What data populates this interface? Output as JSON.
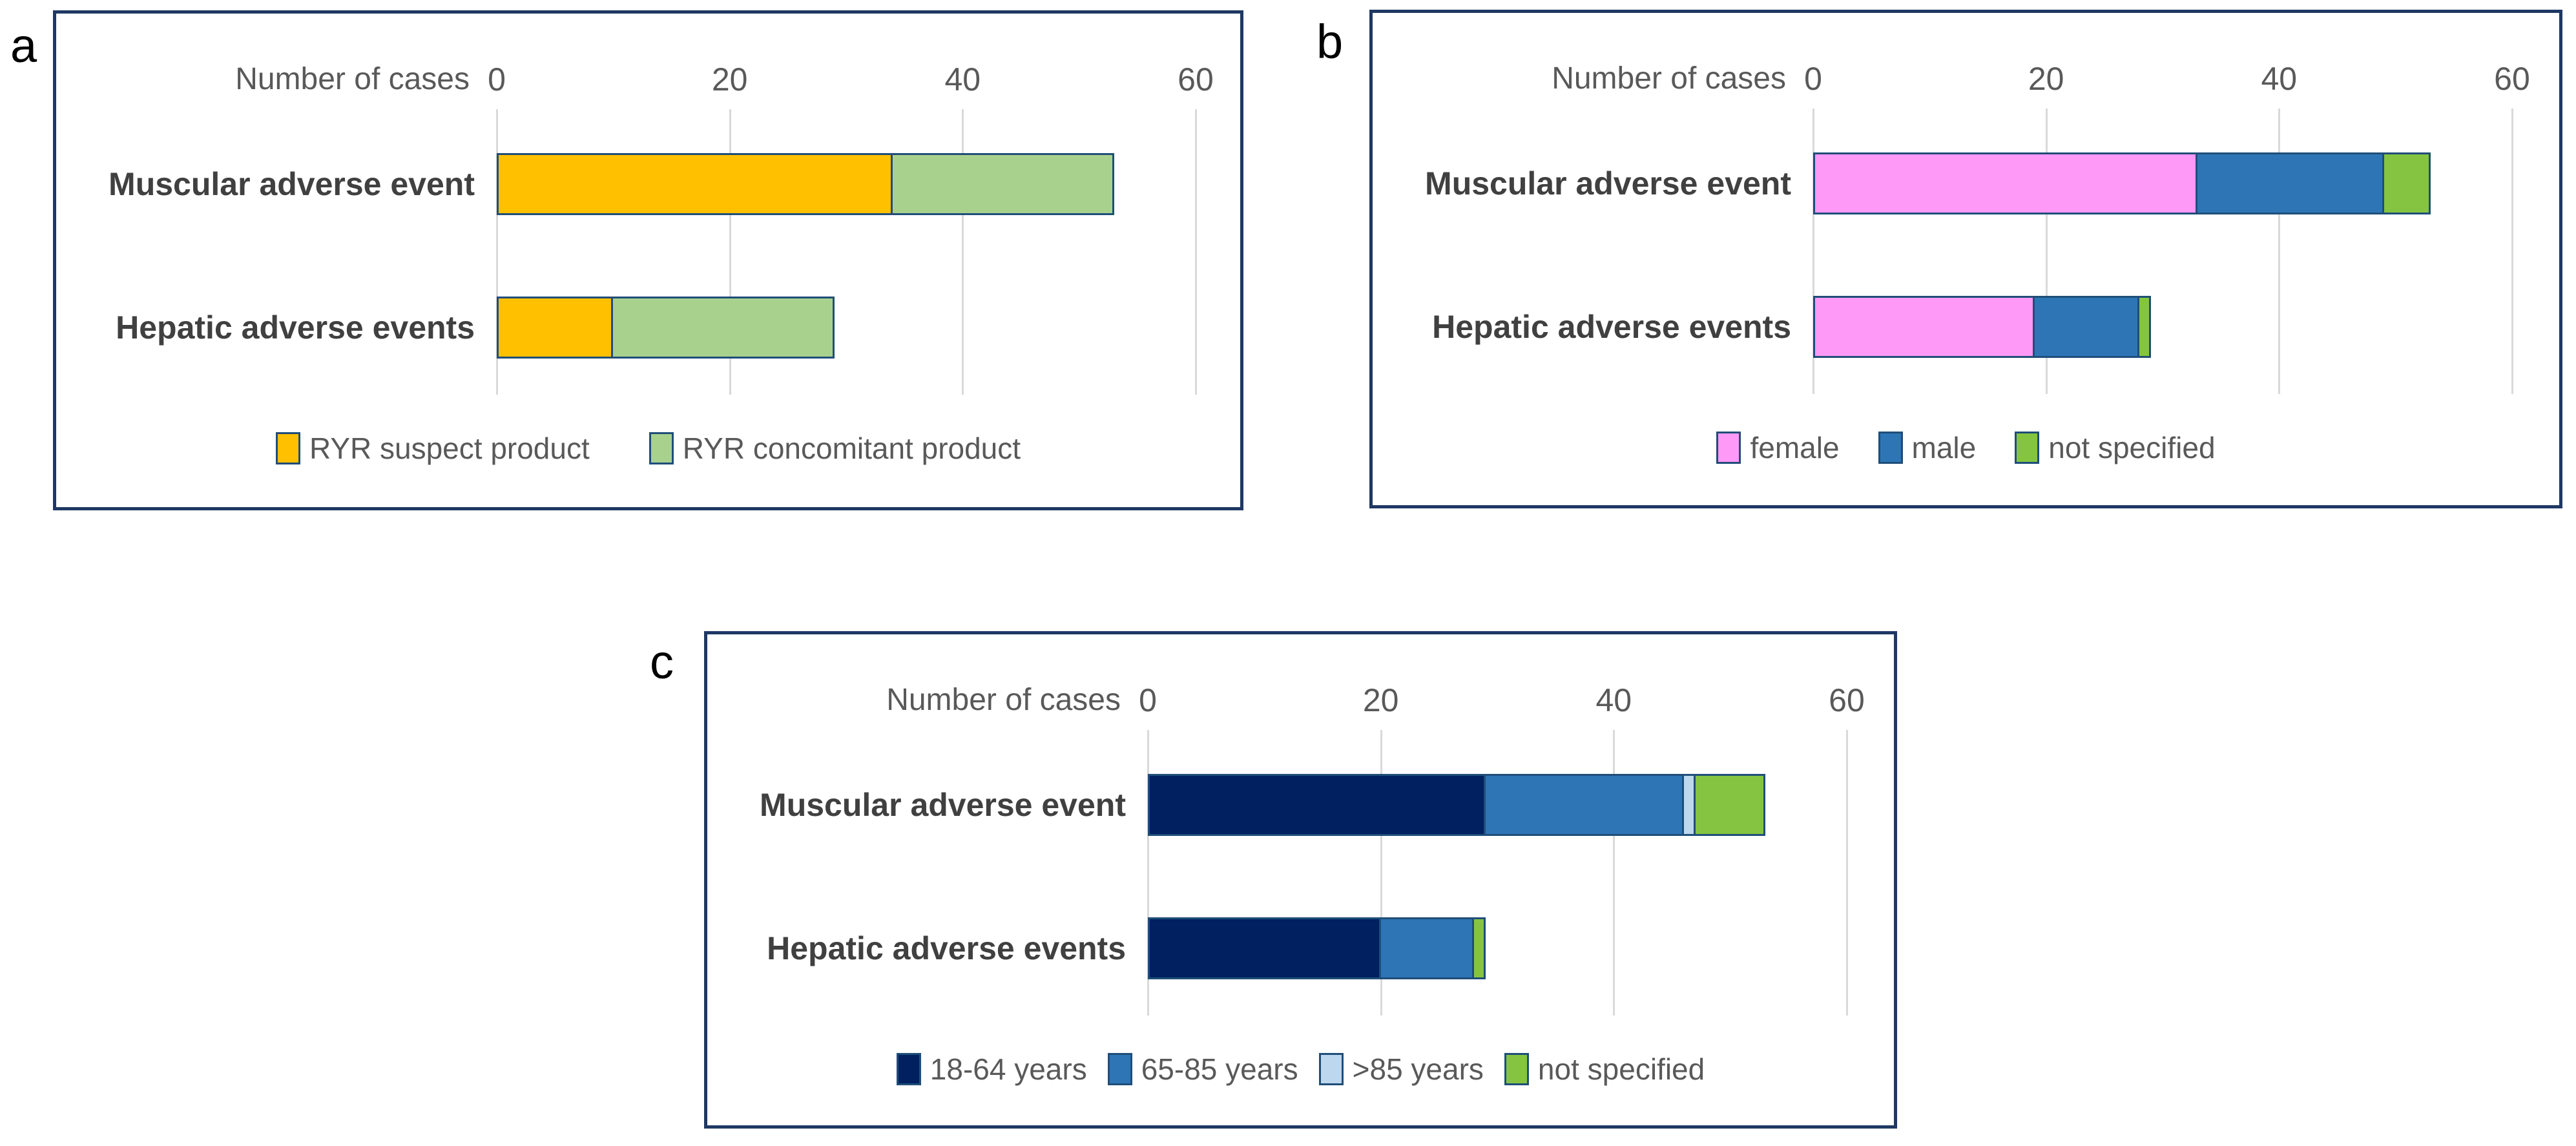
{
  "figure": {
    "background": "#FFFFFF",
    "description_colors": {
      "box_border": "#1F3864",
      "bar_border": "#1F4E79",
      "gridline": "#D9D9D9",
      "axis_text": "#595959",
      "category_text": "#404040",
      "legend_text": "#595959",
      "panel_letter": "#000000"
    }
  },
  "chart_data": [
    {
      "type": "bar",
      "orientation": "horizontal",
      "stacked": true,
      "panel_label": "a",
      "axis_title": "Number of cases",
      "categories": [
        "Muscular adverse event",
        "Hepatic adverse events"
      ],
      "x_ticks": [
        0,
        20,
        40,
        60
      ],
      "xlim": [
        0,
        60
      ],
      "grid": true,
      "legend_position": "bottom",
      "series": [
        {
          "name": "RYR suspect product",
          "color": "#FFC000",
          "values": [
            34,
            10
          ]
        },
        {
          "name": "RYR concomitant product",
          "color": "#A9D18E",
          "values": [
            19,
            19
          ]
        }
      ]
    },
    {
      "type": "bar",
      "orientation": "horizontal",
      "stacked": true,
      "panel_label": "b",
      "axis_title": "Number of cases",
      "categories": [
        "Muscular adverse event",
        "Hepatic adverse events"
      ],
      "x_ticks": [
        0,
        20,
        40,
        60
      ],
      "xlim": [
        0,
        60
      ],
      "grid": true,
      "legend_position": "bottom",
      "series": [
        {
          "name": "female",
          "color": "#FF99F7",
          "values": [
            33,
            19
          ]
        },
        {
          "name": "male",
          "color": "#2E75B6",
          "values": [
            16,
            9
          ]
        },
        {
          "name": "not specified",
          "color": "#85C441",
          "values": [
            4,
            1
          ]
        }
      ]
    },
    {
      "type": "bar",
      "orientation": "horizontal",
      "stacked": true,
      "panel_label": "c",
      "axis_title": "Number of cases",
      "categories": [
        "Muscular adverse event",
        "Hepatic adverse events"
      ],
      "x_ticks": [
        0,
        20,
        40,
        60
      ],
      "xlim": [
        0,
        60
      ],
      "grid": true,
      "legend_position": "bottom",
      "series": [
        {
          "name": "18-64 years",
          "color": "#002060",
          "values": [
            29,
            20
          ]
        },
        {
          "name": "65-85 years",
          "color": "#2E75B6",
          "values": [
            17,
            8
          ]
        },
        {
          "name": ">85 years",
          "color": "#BDD7EE",
          "values": [
            1,
            0
          ]
        },
        {
          "name": "not specified",
          "color": "#85C441",
          "values": [
            6,
            1
          ]
        }
      ]
    }
  ]
}
